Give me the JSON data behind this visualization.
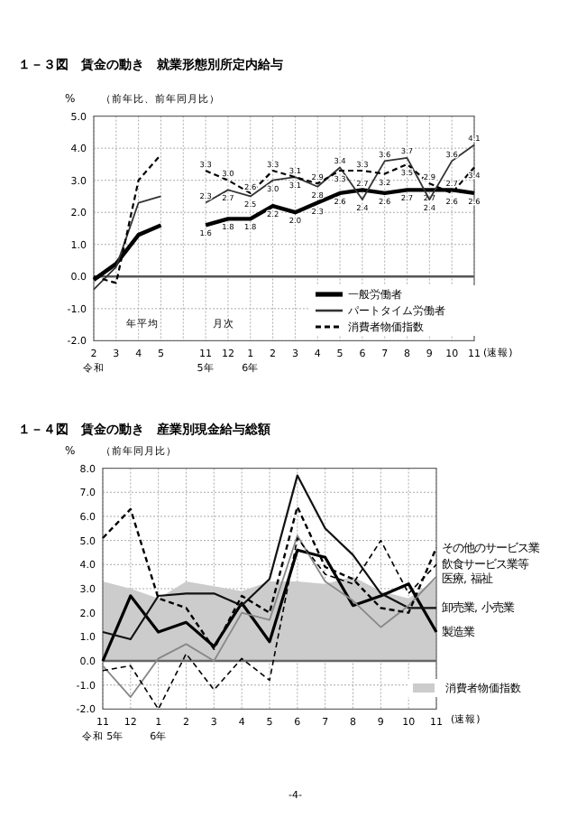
{
  "chart_data": [
    {
      "type": "line",
      "title": "１－３図　賃金の動き　就業形態別所定内給与",
      "subtitle": "（前年比、前年同月比）",
      "ylabel": "%",
      "categories": [
        "2\n令和",
        "3",
        "4",
        "5",
        null,
        "11\n5年",
        "12",
        "1\n6年",
        "2",
        "3",
        "4",
        "5",
        "6",
        "7",
        "8",
        "9",
        "10",
        "11"
      ],
      "ylim": [
        -2,
        5
      ],
      "yticks": [
        {
          "value": -2,
          "label": "-2.0"
        },
        {
          "value": -1,
          "label": "-1.0"
        },
        {
          "value": 0,
          "label": "0.0"
        },
        {
          "value": 1,
          "label": "1.0"
        },
        {
          "value": 2,
          "label": "2.0"
        },
        {
          "value": 3,
          "label": "3.0"
        },
        {
          "value": 4,
          "label": "4.0"
        },
        {
          "value": 5,
          "label": "5.0"
        }
      ],
      "grid": true,
      "legend": "bottom right",
      "ref_lines": [
        {
          "axis": "y",
          "value": 0,
          "color": "#555555"
        }
      ],
      "annotations": [
        "年平均",
        "月次",
        "(速報)"
      ],
      "series": [
        {
          "name": "一般労働者",
          "color": "#000000",
          "line_style": "solid",
          "values": [
            -0.1,
            0.4,
            1.3,
            1.6,
            null,
            1.6,
            1.8,
            1.8,
            2.2,
            2.0,
            2.3,
            2.6,
            2.7,
            2.6,
            2.7,
            2.7,
            2.7,
            2.6
          ],
          "value_labels": [
            null,
            null,
            null,
            null,
            null,
            "1.6",
            "1.8",
            "1.8",
            "2.2",
            "2.0",
            "2.3",
            "2.6",
            "2.7",
            "2.6",
            "2.7",
            "2.7",
            "2.7",
            "2.6"
          ]
        },
        {
          "name": "パートタイム労働者",
          "color": "#333333",
          "line_style": "solid",
          "values": [
            -0.4,
            0.3,
            2.3,
            2.5,
            null,
            2.3,
            2.7,
            2.5,
            3.0,
            3.1,
            2.8,
            3.4,
            2.4,
            3.6,
            3.7,
            2.4,
            3.6,
            4.1
          ],
          "value_labels": [
            null,
            null,
            null,
            null,
            null,
            "2.3",
            "2.7",
            "2.5",
            "3.0",
            "3.1",
            "2.8",
            "3.4",
            "2.4",
            "3.6",
            "3.7",
            "2.4",
            "3.6",
            "4.1"
          ]
        },
        {
          "name": "消費者物価指数",
          "color": "#000000",
          "line_style": "dashed",
          "values": [
            0.0,
            -0.2,
            3.0,
            3.8,
            null,
            3.3,
            3.0,
            2.6,
            3.3,
            3.1,
            2.9,
            3.3,
            3.3,
            3.2,
            3.5,
            2.9,
            2.6,
            3.4
          ],
          "value_labels": [
            null,
            null,
            null,
            null,
            null,
            "3.3",
            "3.0",
            "2.6",
            "3.3",
            "3.1",
            "2.9",
            "3.3",
            "3.3",
            "3.2",
            "3.5",
            "2.9",
            "2.6",
            "3.4"
          ]
        }
      ]
    },
    {
      "type": "line",
      "title": "１－４図　賃金の動き　産業別現金給与総額",
      "subtitle": "（前年同月比）",
      "ylabel": "%",
      "categories": [
        "11\n令和 5年",
        "12",
        "1\n6年",
        "2",
        "3",
        "4",
        "5",
        "6",
        "7",
        "8",
        "9",
        "10",
        "11"
      ],
      "ylim": [
        -2,
        8
      ],
      "yticks": [
        {
          "value": -2,
          "label": "-2.0"
        },
        {
          "value": -1,
          "label": "-1.0"
        },
        {
          "value": 0,
          "label": "0.0"
        },
        {
          "value": 1,
          "label": "1.0"
        },
        {
          "value": 2,
          "label": "2.0"
        },
        {
          "value": 3,
          "label": "3.0"
        },
        {
          "value": 4,
          "label": "4.0"
        },
        {
          "value": 5,
          "label": "5.0"
        },
        {
          "value": 6,
          "label": "6.0"
        },
        {
          "value": 7,
          "label": "7.0"
        },
        {
          "value": 8,
          "label": "8.0"
        }
      ],
      "grid": true,
      "legend": "bottom right",
      "ref_lines": [
        {
          "axis": "y",
          "value": 0,
          "color": "#666666"
        }
      ],
      "annotations": [
        "(速報)",
        "-4-"
      ],
      "series": [
        {
          "name": "消費者物価指数",
          "type": "area",
          "color": "#cccccc",
          "values": [
            3.3,
            3.0,
            2.6,
            3.3,
            3.1,
            2.9,
            3.3,
            3.3,
            3.2,
            3.5,
            2.9,
            2.6,
            3.4
          ]
        },
        {
          "name": "製造業",
          "color": "#000000",
          "line_style": "solid",
          "values": [
            0.0,
            2.7,
            1.2,
            1.6,
            0.6,
            2.4,
            0.8,
            4.6,
            4.3,
            2.3,
            2.7,
            3.2,
            1.2
          ]
        },
        {
          "name": "卸売業, 小売業",
          "color": "#111111",
          "line_style": "solid",
          "values": [
            1.2,
            0.9,
            2.7,
            2.8,
            2.8,
            2.3,
            3.4,
            7.7,
            5.5,
            4.4,
            2.8,
            2.2,
            2.2
          ]
        },
        {
          "name": "医療, 福祉",
          "color": "#888888",
          "line_style": "solid",
          "values": [
            -0.2,
            -1.5,
            0.1,
            0.7,
            0.0,
            2.0,
            1.7,
            5.2,
            3.3,
            2.5,
            1.4,
            2.3,
            3.5
          ]
        },
        {
          "name": "飲食サービス業等",
          "color": "#000000",
          "line_style": "dashed",
          "values": [
            -0.4,
            -0.2,
            -2.0,
            0.3,
            -1.2,
            0.1,
            -0.8,
            5.1,
            3.6,
            3.2,
            5.0,
            2.8,
            4.0
          ]
        },
        {
          "name": "その他のサービス業",
          "color": "#000000",
          "line_style": "dashed",
          "values": [
            5.1,
            6.3,
            2.6,
            2.2,
            0.5,
            2.7,
            2.0,
            6.4,
            3.9,
            3.4,
            2.2,
            2.0,
            4.7
          ]
        }
      ]
    }
  ]
}
